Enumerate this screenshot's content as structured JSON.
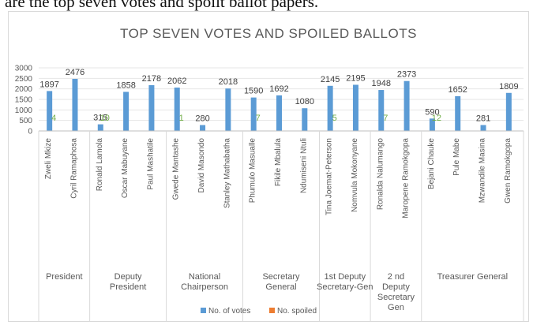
{
  "caption": "are the top seven votes and spoilt ballot papers.",
  "chart_data": {
    "type": "bar",
    "title": "TOP SEVEN VOTES AND SPOILED BALLOTS",
    "yticks": [
      0,
      500,
      1000,
      1500,
      2000,
      2500,
      3000
    ],
    "ylim": [
      0,
      3000
    ],
    "grid": true,
    "legend_position": "bottom",
    "colors": {
      "votes": "#5b9bd5",
      "spoiled": "#ed7d31",
      "spoiled_label": "#70ad47"
    },
    "candidates": [
      "Zweli Mkize",
      "Cyril Ramaphosa",
      "Ronald Lamola",
      "Oscar Mabuyane",
      "Paul Mashatile",
      "Gwede Mantashe",
      "David Masondo",
      "Stanley Mathabatha",
      "Phumulo Masualle",
      "Fikile Mbalula",
      "Ndumiseni Ntuli",
      "Tina Joemat-Peterson",
      "Nomvula Mokonyane",
      "Ronalda Nalumango",
      "Maropene Ramokgopa",
      "Bejani Chauke",
      "Pule Mabe",
      "Mzwandile Masina",
      "Gwen Ramokgopa"
    ],
    "groups": [
      {
        "label": "President",
        "size": 2
      },
      {
        "label": "Deputy President",
        "size": 3
      },
      {
        "label": "National Chairperson",
        "size": 3
      },
      {
        "label": "Secretary General",
        "size": 3
      },
      {
        "label": "1st Deputy Secretary-Gen",
        "size": 2
      },
      {
        "label": "2 nd Deputy Secretary Gen",
        "size": 2
      },
      {
        "label": "Treasurer General",
        "size": 4
      }
    ],
    "series": [
      {
        "name": "No. of votes",
        "values": [
          1897,
          2476,
          315,
          1858,
          2178,
          2062,
          280,
          2018,
          1590,
          1692,
          1080,
          2145,
          2195,
          1948,
          2373,
          590,
          1652,
          281,
          1809
        ]
      },
      {
        "name": "No. spoiled",
        "values": [
          4,
          null,
          10,
          null,
          null,
          1,
          null,
          null,
          7,
          null,
          null,
          5,
          null,
          7,
          null,
          12,
          null,
          null,
          null
        ]
      }
    ]
  }
}
